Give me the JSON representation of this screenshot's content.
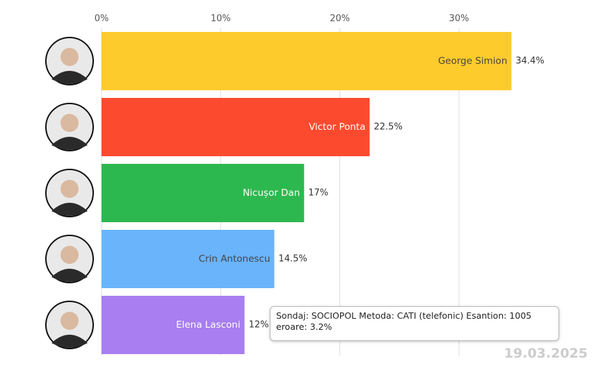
{
  "chart_data": {
    "type": "bar",
    "orientation": "horizontal",
    "categories": [
      "George Simion",
      "Victor Ponta",
      "Nicușor Dan",
      "Crin Antonescu",
      "Elena Lasconi"
    ],
    "values": [
      34.4,
      22.5,
      17,
      14.5,
      12
    ],
    "value_labels": [
      "34.4%",
      "22.5%",
      "17%",
      "14.5%",
      "12%"
    ],
    "colors": [
      "#fecb2d",
      "#fc4a2f",
      "#2db84f",
      "#6ab4fc",
      "#a87ef0"
    ],
    "xlim": [
      0,
      40
    ],
    "xticks": [
      {
        "value": 0,
        "label": "0%"
      },
      {
        "value": 10,
        "label": "10%"
      },
      {
        "value": 20,
        "label": "20%"
      },
      {
        "value": 30,
        "label": "30%"
      }
    ],
    "grid": true,
    "annotation": "Sondaj: SOCIOPOL Metoda: CATI (telefonic) Esantion: 1005 eroare: 3.2%",
    "date": "19.03.2025"
  }
}
